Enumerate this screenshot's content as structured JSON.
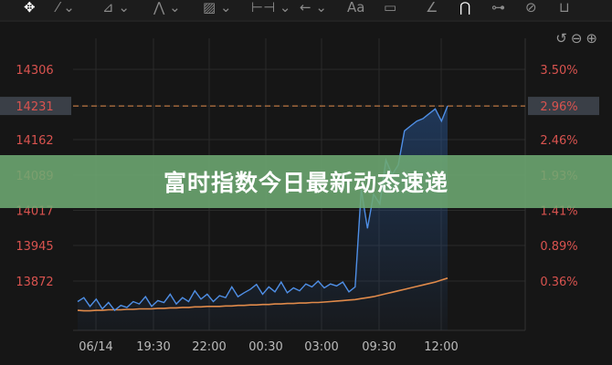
{
  "toolbar": {
    "icons": [
      "move-icon",
      "line-icon",
      "ray-icon",
      "pattern-icon",
      "measure-icon",
      "range-icon",
      "arrow-icon",
      "text-icon",
      "note-icon",
      "angle-icon",
      "magnet-icon",
      "connect-icon",
      "hide-icon",
      "delete-icon"
    ],
    "text_tool": "Aa"
  },
  "controls": {
    "icons": [
      "undo-icon",
      "zoom-out-icon",
      "zoom-in-icon"
    ]
  },
  "banner": {
    "title": "富时指数今日最新动态速递"
  },
  "colors": {
    "price": "#4f8fe6",
    "average": "#e08a4a",
    "axis_text": "#d9534f",
    "grid": "#2a2a2a"
  },
  "chart_data": {
    "type": "line",
    "x_tick_labels": [
      "06/14",
      "19:30",
      "22:00",
      "00:30",
      "03:00",
      "09:30",
      "12:00"
    ],
    "y_left_ticks": [
      14306,
      14231,
      14162,
      14089,
      14017,
      13945,
      13872
    ],
    "y_right_ticks": [
      "3.50%",
      "2.96%",
      "2.46%",
      "1.93%",
      "1.41%",
      "0.89%",
      "0.36%"
    ],
    "current_price": "14231",
    "current_change": "2.96%",
    "ylim": [
      13800,
      14380
    ],
    "grid": true,
    "series": [
      {
        "key": "price",
        "values": [
          13830,
          13838,
          13820,
          13835,
          13815,
          13828,
          13812,
          13822,
          13818,
          13830,
          13825,
          13840,
          13820,
          13832,
          13828,
          13845,
          13825,
          13838,
          13830,
          13852,
          13835,
          13845,
          13830,
          13842,
          13838,
          13860,
          13840,
          13848,
          13855,
          13865,
          13845,
          13860,
          13850,
          13870,
          13848,
          13858,
          13852,
          13866,
          13860,
          13872,
          13858,
          13866,
          13862,
          13870,
          13850,
          13860,
          14060,
          13980,
          14050,
          14030,
          14120,
          14090,
          14110,
          14180,
          14190,
          14200,
          14205,
          14215,
          14225,
          14200,
          14231
        ]
      },
      {
        "key": "average",
        "values": [
          13812,
          13811,
          13811,
          13812,
          13812,
          13813,
          13813,
          13813,
          13814,
          13814,
          13815,
          13815,
          13815,
          13816,
          13816,
          13817,
          13817,
          13818,
          13818,
          13819,
          13819,
          13820,
          13820,
          13820,
          13821,
          13821,
          13822,
          13822,
          13823,
          13823,
          13824,
          13824,
          13825,
          13825,
          13826,
          13826,
          13827,
          13827,
          13828,
          13828,
          13829,
          13830,
          13831,
          13832,
          13833,
          13834,
          13836,
          13838,
          13840,
          13843,
          13846,
          13849,
          13852,
          13855,
          13858,
          13861,
          13864,
          13867,
          13870,
          13874,
          13878
        ]
      }
    ]
  }
}
